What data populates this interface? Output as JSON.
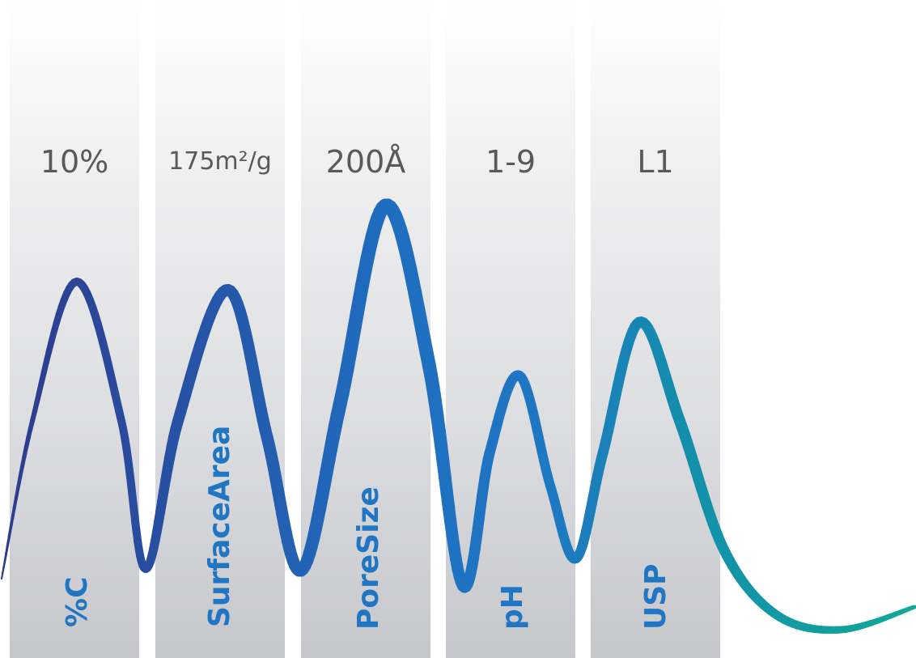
{
  "columns": [
    {
      "value": "10%",
      "label": "%C"
    },
    {
      "value": "175m²/g",
      "label": "SurfaceArea"
    },
    {
      "value": "200Å",
      "label": "PoreSize"
    },
    {
      "value": "1-9",
      "label": "pH"
    },
    {
      "value": "L1",
      "label": "USP"
    }
  ],
  "colors": {
    "value_text": "#58595b",
    "label_text": "#2176c4",
    "wave_start": "#2e3a8c",
    "wave_mid": "#1f6dc0",
    "wave_end": "#10a996"
  }
}
